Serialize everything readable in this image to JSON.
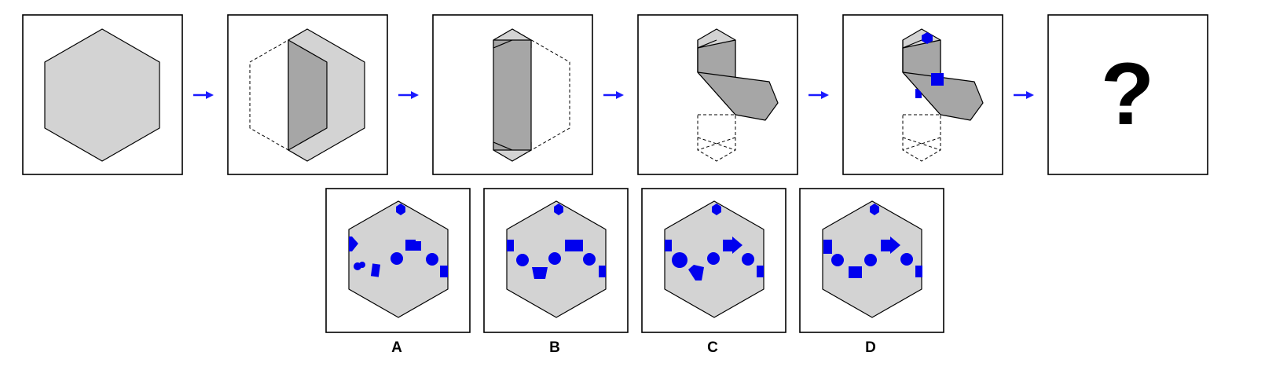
{
  "question_mark": "?",
  "options": [
    {
      "label": "A"
    },
    {
      "label": "B"
    },
    {
      "label": "C"
    },
    {
      "label": "D"
    }
  ],
  "colors": {
    "paper_fill": "#d3d3d3",
    "flap_fill": "#a6a6a6",
    "mark_color": "#0000ee",
    "arrow_color": "#1a1aff"
  }
}
